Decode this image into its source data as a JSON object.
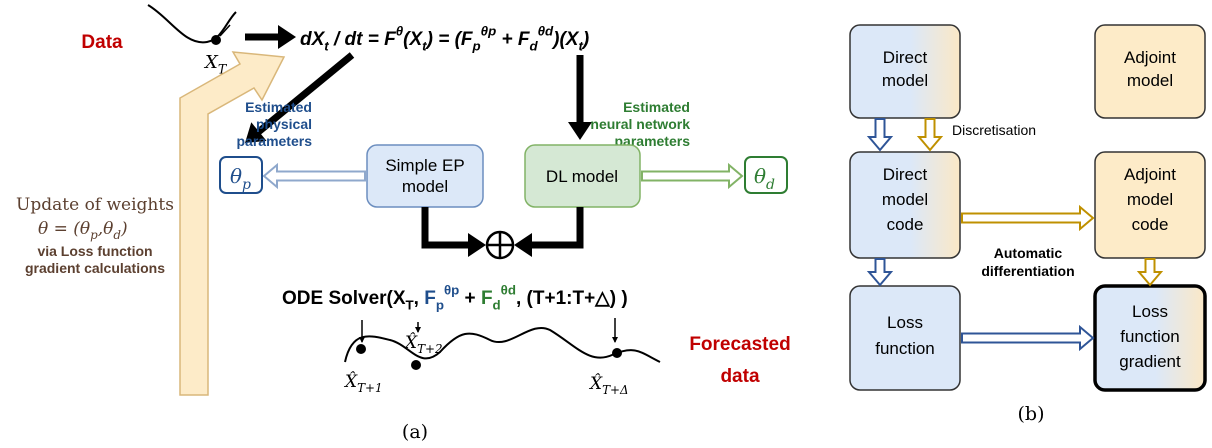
{
  "panel_a": {
    "data": "Data",
    "x_t": [
      {
        "t": "X"
      },
      {
        "sub": "T"
      }
    ],
    "equation": [
      {
        "t": "dX"
      },
      {
        "sub": "t"
      },
      {
        "t": " / dt = F"
      },
      {
        "sup": "θ"
      },
      {
        "t": "(X"
      },
      {
        "sub": "t"
      },
      {
        "t": ") = (F"
      },
      {
        "sub": "p"
      },
      {
        "sup": "θp"
      },
      {
        "t": " + F"
      },
      {
        "sub": "d"
      },
      {
        "sup": "θd"
      },
      {
        "t": ")(X"
      },
      {
        "sub": "t"
      },
      {
        "t": ")"
      }
    ],
    "physical_params": [
      "Estimated",
      "physical",
      "parameters"
    ],
    "nn_params": [
      "Estimated",
      "neural network",
      "parameters"
    ],
    "simple_ep": [
      "Simple EP",
      "model"
    ],
    "dl_model": "DL model",
    "theta_p": [
      {
        "t": "θ"
      },
      {
        "sub": "p"
      }
    ],
    "theta_d": [
      {
        "t": "θ"
      },
      {
        "sub": "d"
      }
    ],
    "ode": [
      {
        "t": "ODE Solver(X"
      },
      {
        "sub": "T"
      },
      {
        "t": ", "
      },
      {
        "t": "F",
        "color": "#1f4e8c"
      },
      {
        "sub": "p",
        "color": "#1f4e8c"
      },
      {
        "sup": "θp",
        "color": "#1f4e8c"
      },
      {
        "t": " + "
      },
      {
        "t": "F",
        "color": "#2e7d32"
      },
      {
        "sub": "d",
        "color": "#2e7d32"
      },
      {
        "sup": "θd",
        "color": "#2e7d32"
      },
      {
        "t": ", (T+1:T+△) )"
      }
    ],
    "forecast_points": [
      [
        {
          "t": "X̂"
        },
        {
          "sub": "T+1"
        }
      ],
      [
        {
          "t": "X̂"
        },
        {
          "sub": "T+2"
        }
      ],
      [
        {
          "t": "X̂"
        },
        {
          "sub": "T+Δ"
        }
      ]
    ],
    "forecasted": [
      "Forecasted",
      "data"
    ],
    "update": "Update of weights",
    "theta_eq": [
      {
        "t": "θ = (θ"
      },
      {
        "sub": "p"
      },
      {
        "t": ",θ"
      },
      {
        "sub": "d"
      },
      {
        "t": ")"
      }
    ],
    "loss_grad": [
      "via Loss function",
      "gradient calculations"
    ],
    "caption": "(a)"
  },
  "panel_b": {
    "direct_model": [
      "Direct",
      "model"
    ],
    "adjoint_model": [
      "Adjoint",
      "model"
    ],
    "discretisation": "Discretisation",
    "direct_code": [
      "Direct",
      "model",
      "code"
    ],
    "adjoint_code": [
      "Adjoint",
      "model",
      "code"
    ],
    "autodiff": [
      "Automatic",
      "differentiation"
    ],
    "loss_function": [
      "Loss",
      "function"
    ],
    "loss_gradient": [
      "Loss",
      "function",
      "gradient"
    ],
    "caption": "(b)"
  }
}
